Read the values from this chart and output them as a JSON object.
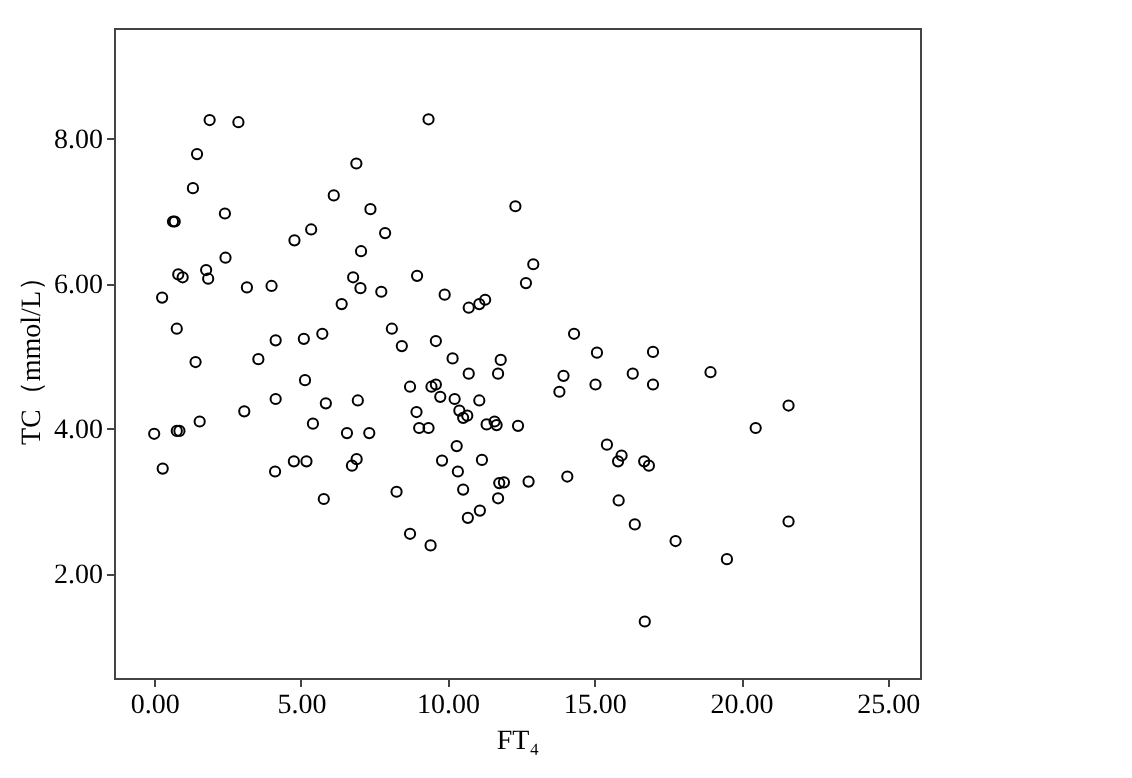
{
  "chart_data": {
    "type": "scatter",
    "xlabel": "FT₄",
    "ylabel": "TC（mmol/L）",
    "marker": "circle",
    "grid": false,
    "xlim": [
      -1.37,
      26.1
    ],
    "ylim": [
      0.56,
      9.53
    ],
    "xticks": [
      {
        "value": 0,
        "label": "0.00"
      },
      {
        "value": 5,
        "label": "5.00"
      },
      {
        "value": 10,
        "label": "10.00"
      },
      {
        "value": 15,
        "label": "15.00"
      },
      {
        "value": 20,
        "label": "20.00"
      },
      {
        "value": 25,
        "label": "25.00"
      }
    ],
    "yticks": [
      {
        "value": 2,
        "label": "2.00"
      },
      {
        "value": 4,
        "label": "4.00"
      },
      {
        "value": 6,
        "label": "6.00"
      },
      {
        "value": 8,
        "label": "8.00"
      }
    ],
    "series": [
      {
        "color": "#000000",
        "x": [
          1.89,
          2.87,
          9.35,
          1.46,
          6.89,
          1.32,
          6.12,
          7.37,
          2.41,
          0.64,
          0.7,
          5.35,
          7.87,
          4.78,
          7.05,
          2.43,
          0.82,
          0.97,
          1.77,
          1.84,
          6.78,
          8.96,
          3.16,
          4.0,
          7.03,
          7.74,
          9.9,
          0.27,
          6.39,
          0.77,
          8.1,
          4.14,
          5.1,
          5.73,
          8.44,
          9.6,
          1.41,
          3.55,
          5.14,
          8.72,
          9.45,
          9.6,
          9.75,
          3.07,
          4.14,
          5.85,
          6.94,
          1.55,
          0.0,
          0.77,
          0.86,
          5.41,
          6.57,
          7.33,
          8.94,
          9.03,
          9.35,
          9.81,
          0.29,
          4.12,
          4.76,
          5.19,
          6.9,
          6.74,
          5.78,
          8.26,
          8.72,
          9.42,
          12.31,
          12.92,
          12.67,
          10.72,
          11.08,
          11.28,
          14.31,
          15.09,
          17.0,
          18.96,
          10.17,
          10.72,
          11.81,
          11.72,
          13.95,
          13.81,
          15.04,
          16.31,
          17.0,
          10.24,
          11.08,
          10.4,
          10.53,
          10.67,
          11.33,
          11.6,
          11.67,
          12.4,
          21.62,
          20.5,
          10.31,
          10.35,
          11.17,
          10.53,
          11.76,
          11.92,
          11.72,
          12.76,
          10.69,
          11.1,
          14.08,
          15.43,
          15.93,
          15.81,
          16.7,
          16.86,
          15.83,
          16.38,
          17.77,
          19.52,
          21.62,
          16.72
        ],
        "values": [
          8.26,
          8.23,
          8.27,
          7.79,
          7.66,
          7.32,
          7.22,
          7.03,
          6.97,
          6.86,
          6.86,
          6.75,
          6.7,
          6.6,
          6.45,
          6.36,
          6.13,
          6.09,
          6.19,
          6.07,
          6.09,
          6.11,
          5.95,
          5.97,
          5.94,
          5.89,
          5.85,
          5.81,
          5.72,
          5.38,
          5.38,
          5.22,
          5.24,
          5.31,
          5.14,
          5.21,
          4.92,
          4.96,
          4.67,
          4.58,
          4.58,
          4.61,
          4.44,
          4.24,
          4.41,
          4.35,
          4.39,
          4.1,
          3.93,
          3.97,
          3.97,
          4.07,
          3.94,
          3.94,
          4.23,
          4.01,
          4.01,
          3.56,
          3.45,
          3.41,
          3.55,
          3.55,
          3.58,
          3.49,
          3.03,
          3.13,
          2.55,
          2.39,
          7.07,
          6.27,
          6.01,
          5.67,
          5.72,
          5.78,
          5.31,
          5.05,
          5.06,
          4.78,
          4.97,
          4.76,
          4.95,
          4.76,
          4.73,
          4.51,
          4.61,
          4.76,
          4.61,
          4.41,
          4.39,
          4.25,
          4.15,
          4.18,
          4.06,
          4.1,
          4.05,
          4.04,
          4.32,
          4.01,
          3.76,
          3.41,
          3.57,
          3.16,
          3.25,
          3.26,
          3.04,
          3.27,
          2.77,
          2.87,
          3.34,
          3.78,
          3.63,
          3.55,
          3.55,
          3.49,
          3.01,
          2.68,
          2.45,
          2.2,
          2.72,
          1.34
        ]
      }
    ]
  }
}
